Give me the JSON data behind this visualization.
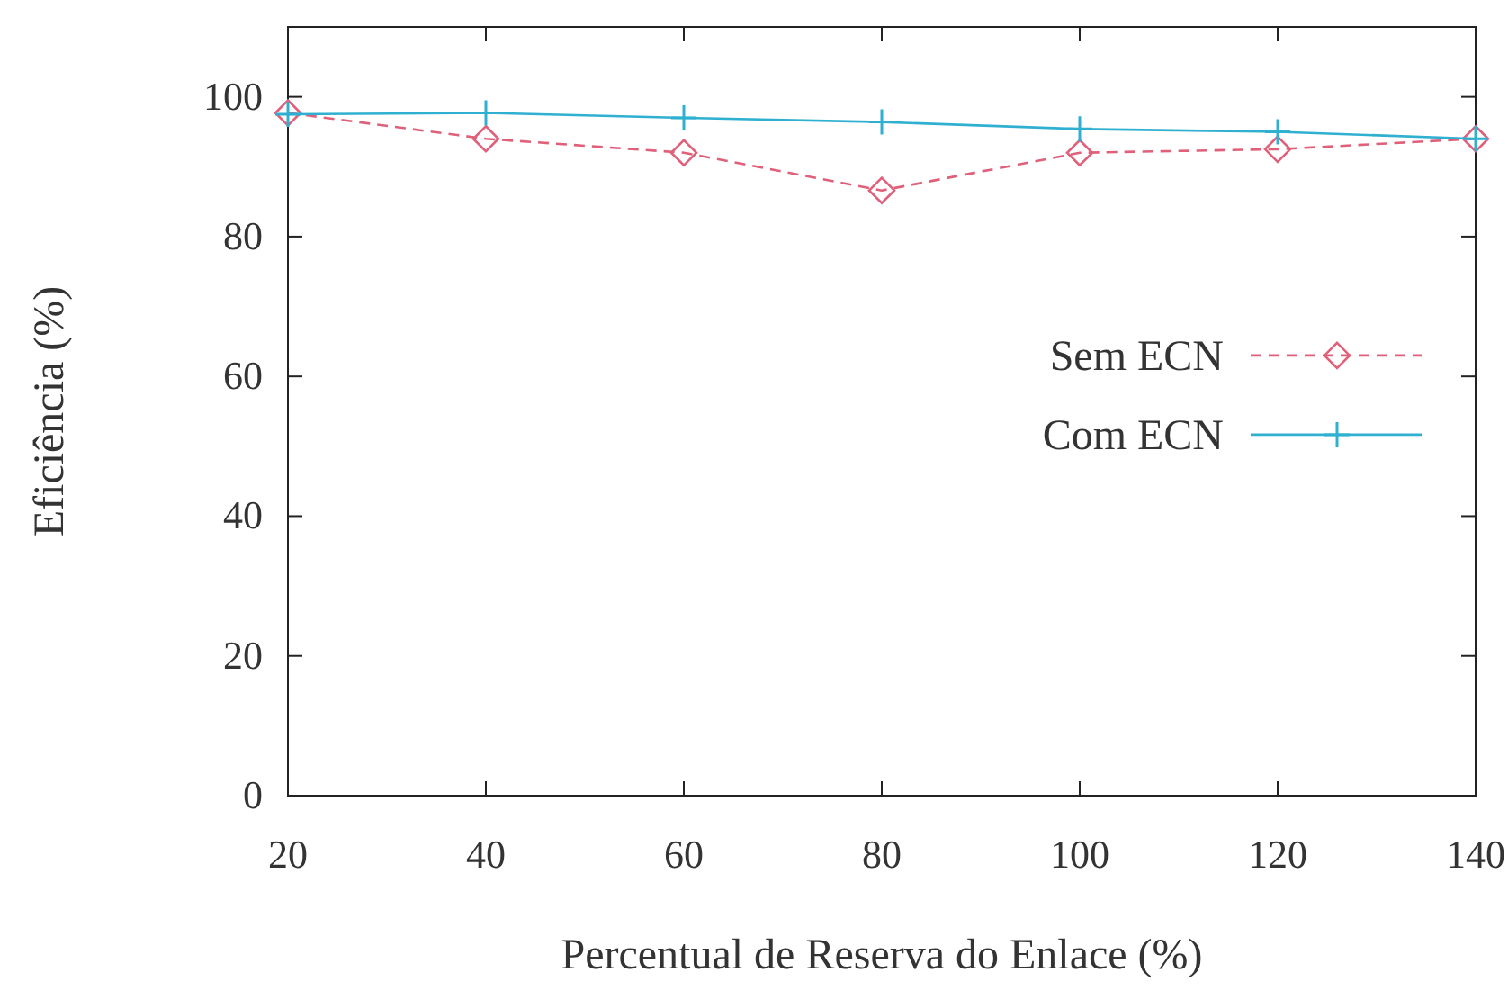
{
  "chart_data": {
    "type": "line",
    "xlabel": "Percentual de Reserva do Enlace (%)",
    "ylabel": "Eficiência (%)",
    "x": [
      20,
      40,
      60,
      80,
      100,
      120,
      140
    ],
    "xlim": [
      20,
      140
    ],
    "xticks": [
      20,
      40,
      60,
      80,
      100,
      120,
      140
    ],
    "ylim": [
      0,
      110
    ],
    "yticks": [
      0,
      20,
      40,
      60,
      80,
      100
    ],
    "legend": "right",
    "grid": false,
    "series": [
      {
        "name": "Sem ECN",
        "color": "#e0607a",
        "values": [
          97.7,
          94,
          92,
          86.6,
          92,
          92.5,
          94
        ],
        "marker": "diamond",
        "line_style": "dashed"
      },
      {
        "name": "Com ECN",
        "color": "#30b0d0",
        "values": [
          97.5,
          97.7,
          97,
          96.4,
          95.4,
          95,
          94
        ],
        "marker": "cross",
        "line_style": "solid"
      }
    ]
  }
}
